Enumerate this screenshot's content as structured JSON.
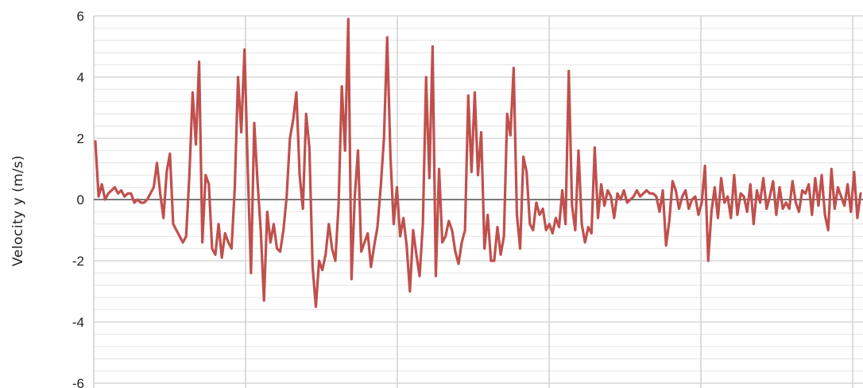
{
  "chart_data": {
    "type": "line",
    "title": "",
    "xlabel": "",
    "ylabel": "Velocity y (m/s)",
    "ylim": [
      -6,
      6
    ],
    "yticks": [
      6,
      4,
      2,
      0,
      -2,
      -4,
      -6
    ],
    "ytick_labels": [
      "6",
      "4",
      "2",
      "0",
      "-2",
      "-4",
      "-6"
    ],
    "grid": true,
    "legend": "none",
    "series_color": "#c0504d",
    "series": [
      {
        "name": "",
        "values": [
          1.9,
          0.1,
          0.5,
          0.0,
          0.2,
          0.3,
          0.4,
          0.2,
          0.3,
          0.1,
          0.2,
          0.2,
          -0.1,
          0.0,
          -0.1,
          -0.1,
          0.0,
          0.2,
          0.4,
          1.2,
          0.2,
          -0.6,
          0.9,
          1.5,
          -0.8,
          -1.0,
          -1.2,
          -1.4,
          -1.2,
          0.8,
          3.5,
          1.8,
          4.5,
          -1.4,
          0.8,
          0.5,
          -1.6,
          -1.8,
          -0.8,
          -1.9,
          -1.1,
          -1.4,
          -1.6,
          0.4,
          4.0,
          2.2,
          4.9,
          1.0,
          -2.4,
          2.5,
          0.6,
          -1.0,
          -3.3,
          -0.4,
          -1.4,
          -0.8,
          -1.6,
          -1.7,
          -1.0,
          0.1,
          2.0,
          2.6,
          3.5,
          0.8,
          -0.3,
          2.8,
          1.7,
          -2.2,
          -3.5,
          -2.0,
          -2.3,
          -1.8,
          -0.8,
          -1.6,
          -2.0,
          -0.2,
          3.7,
          1.6,
          5.9,
          -2.6,
          0.1,
          1.6,
          -1.7,
          -1.4,
          -1.1,
          -2.2,
          -1.5,
          -0.9,
          0.4,
          2.0,
          5.3,
          1.4,
          -0.8,
          0.4,
          -1.2,
          -0.6,
          -1.5,
          -3.0,
          -1.0,
          -1.8,
          -2.5,
          -0.8,
          4.0,
          0.7,
          5.0,
          -2.5,
          1.0,
          -1.4,
          -1.2,
          -0.7,
          -1.0,
          -1.7,
          -2.1,
          -1.4,
          -1.0,
          3.4,
          0.9,
          3.5,
          0.8,
          2.2,
          -1.6,
          -0.5,
          -2.0,
          -2.0,
          -0.9,
          -1.8,
          -1.2,
          2.8,
          2.1,
          4.3,
          -0.5,
          -1.6,
          1.4,
          0.9,
          -0.8,
          -1.0,
          -0.1,
          -0.5,
          -0.3,
          -1.0,
          -0.8,
          -1.1,
          -0.6,
          -0.9,
          0.3,
          -0.8,
          4.2,
          -0.2,
          -1.0,
          1.6,
          -0.8,
          -1.4,
          -0.9,
          -1.1,
          1.7,
          -0.6,
          0.5,
          -0.2,
          0.3,
          0.1,
          -0.6,
          0.2,
          0.0,
          0.3,
          -0.1,
          0.0,
          0.1,
          0.3,
          0.1,
          0.2,
          0.3,
          0.2,
          0.2,
          0.1,
          -0.4,
          0.3,
          -1.5,
          -0.7,
          0.6,
          0.3,
          -0.3,
          0.1,
          0.3,
          -0.3,
          0.0,
          0.1,
          -0.5,
          -0.1,
          1.1,
          -2.0,
          -0.4,
          0.4,
          -0.6,
          0.7,
          -0.1,
          0.1,
          -0.6,
          0.8,
          -0.5,
          0.2,
          0.1,
          -0.4,
          0.5,
          -0.8,
          0.3,
          -0.1,
          0.7,
          -0.3,
          0.1,
          0.6,
          -0.5,
          0.4,
          -0.3,
          -0.1,
          -0.3,
          0.6,
          -0.1,
          -0.4,
          0.3,
          0.2,
          0.5,
          -0.5,
          0.7,
          -0.2,
          0.8,
          -0.5,
          -1.0,
          1.0,
          -0.3,
          0.4,
          0.1,
          -0.2,
          0.5,
          -0.4,
          0.9,
          -0.6,
          0.2
        ]
      }
    ]
  }
}
